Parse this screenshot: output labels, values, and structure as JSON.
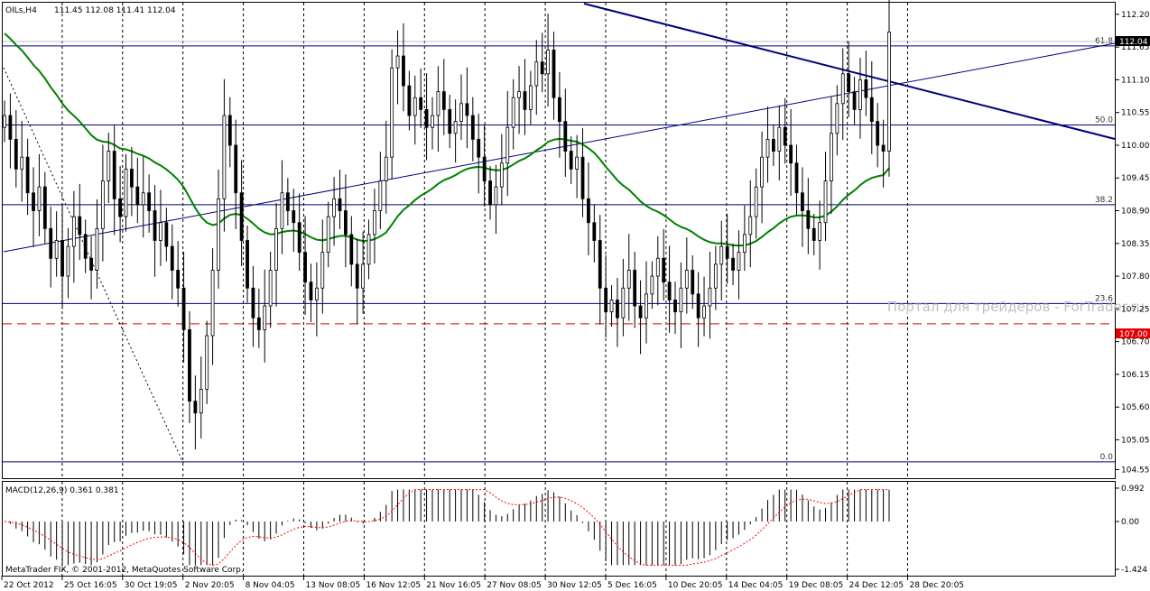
{
  "chart_data": {
    "type": "candlestick",
    "symbol_header": "OILs,H4",
    "ohlc": "111.45 112.08 111.41 112.04",
    "watermark": "Портал для трейдеров - ForTrader.ru",
    "copyright": "MetaTrader FIX, © 2001-2012, MetaQuotes Software Corp.",
    "price_axis": {
      "ylim": [
        104.42,
        112.38
      ],
      "ticks": [
        "112.20",
        "111.65",
        "111.10",
        "110.55",
        "110.00",
        "109.45",
        "108.90",
        "108.35",
        "107.80",
        "107.25",
        "106.70",
        "106.15",
        "105.60",
        "105.05",
        "104.55"
      ]
    },
    "current_price_label": "112.04",
    "alert_level_label": "107.00",
    "alert_level": 107.0,
    "fib_levels": [
      {
        "label": "61.8",
        "price": 111.67
      },
      {
        "label": "50.0",
        "price": 110.34
      },
      {
        "label": "38.2",
        "price": 109.0
      },
      {
        "label": "23.6",
        "price": 107.34
      },
      {
        "label": "0.0",
        "price": 104.68
      }
    ],
    "x_labels": [
      "22 Oct 2012",
      "25 Oct 16:05",
      "30 Oct 19:05",
      "2 Nov 20:05",
      "8 Nov 04:05",
      "13 Nov 08:05",
      "16 Nov 12:05",
      "21 Nov 16:05",
      "27 Nov 08:05",
      "30 Nov 12:05",
      "5 Dec 16:05",
      "10 Dec 20:05",
      "14 Dec 04:05",
      "19 Dec 08:05",
      "24 Dec 12:05",
      "28 Dec 20:05"
    ],
    "closes": [
      110.5,
      110.1,
      109.6,
      109.8,
      109.2,
      108.9,
      109.3,
      108.6,
      108.1,
      108.4,
      107.8,
      108.3,
      108.8,
      108.5,
      108.1,
      107.9,
      108.6,
      109.4,
      109.9,
      109.1,
      108.8,
      109.6,
      109.3,
      109.0,
      109.2,
      108.9,
      108.4,
      108.7,
      108.3,
      107.9,
      107.6,
      106.9,
      105.7,
      105.5,
      105.9,
      106.8,
      107.9,
      109.1,
      110.5,
      110.0,
      109.2,
      108.4,
      107.6,
      107.1,
      106.9,
      107.3,
      107.9,
      108.6,
      109.2,
      108.9,
      108.7,
      108.2,
      107.7,
      107.4,
      107.6,
      108.2,
      108.8,
      109.1,
      108.9,
      108.5,
      108.0,
      107.6,
      108.0,
      108.5,
      108.9,
      109.4,
      109.8,
      111.3,
      111.5,
      111.0,
      110.5,
      110.8,
      110.6,
      110.3,
      110.5,
      110.9,
      110.6,
      110.2,
      110.4,
      110.7,
      110.5,
      110.1,
      109.8,
      109.4,
      109.0,
      109.3,
      109.7,
      110.3,
      110.8,
      110.9,
      110.6,
      111.0,
      111.4,
      111.2,
      111.6,
      110.8,
      110.4,
      109.9,
      109.6,
      109.8,
      109.1,
      108.7,
      108.4,
      107.6,
      107.2,
      107.4,
      107.1,
      107.6,
      107.9,
      107.3,
      107.1,
      107.5,
      107.8,
      108.1,
      107.7,
      107.4,
      107.2,
      107.6,
      107.9,
      107.5,
      107.1,
      107.3,
      107.6,
      108.0,
      108.3,
      108.1,
      107.9,
      108.2,
      108.5,
      108.8,
      109.3,
      109.8,
      110.1,
      109.9,
      110.3,
      110.0,
      109.7,
      109.2,
      108.9,
      108.6,
      108.4,
      108.7,
      109.4,
      110.2,
      110.7,
      111.2,
      110.9,
      110.6,
      111.1,
      110.8,
      110.4,
      110.0,
      109.9,
      111.9
    ]
  },
  "macd": {
    "label": "MACD(12,26,9) 0.361 0.381",
    "ticks": [
      "0.992",
      "0.00",
      "-1.424"
    ],
    "range": [
      -1.424,
      0.992
    ]
  },
  "colors": {
    "grid": "#000000",
    "candle": "#000000",
    "ma": "#008000",
    "fib": "#000080",
    "trend": "#00007a",
    "alert": "#e00000",
    "signal": "#ff0000"
  }
}
